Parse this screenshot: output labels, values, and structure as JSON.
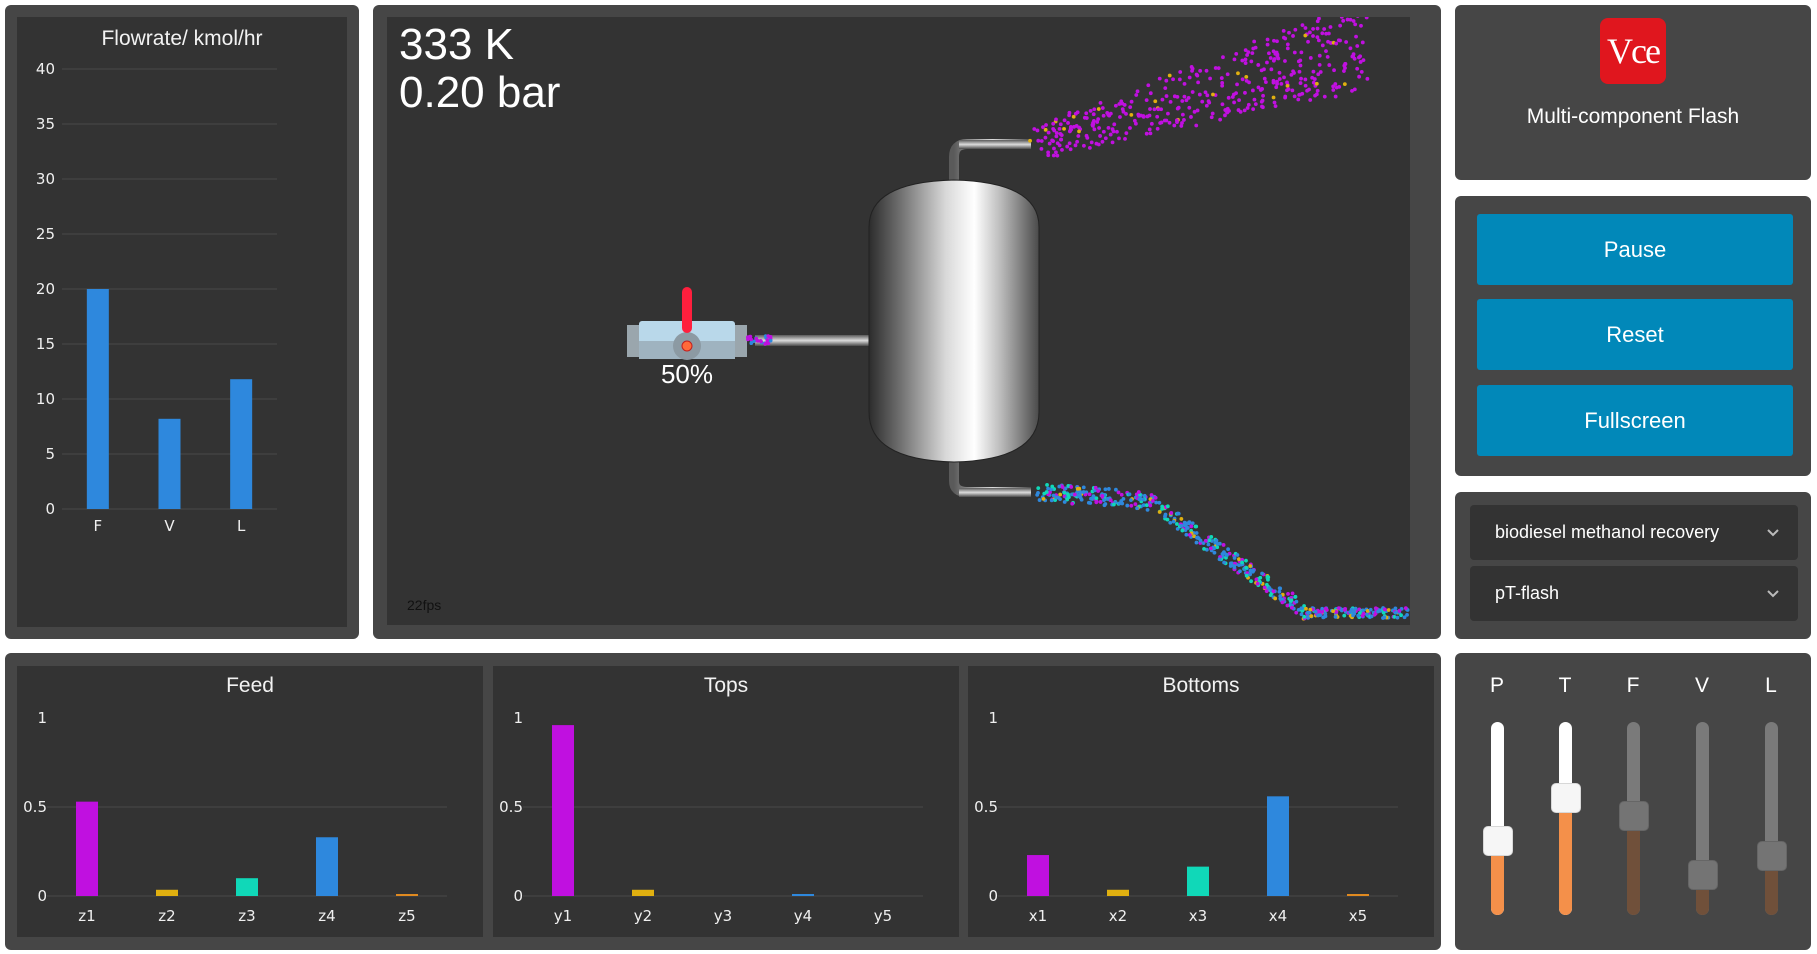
{
  "flowrate_chart": {
    "title": "Flowrate/ kmol/hr",
    "chart_data": {
      "type": "bar",
      "title": "Flowrate/ kmol/hr",
      "categories": [
        "F",
        "V",
        "L"
      ],
      "values": [
        20,
        8.2,
        11.8
      ],
      "ylim": [
        0,
        40
      ],
      "yticks": [
        "0",
        "5",
        "10",
        "15",
        "20",
        "25",
        "30",
        "35",
        "40"
      ],
      "color": "#2e88dd"
    }
  },
  "process": {
    "temperature": "333 K",
    "pressure": "0.20 bar",
    "valve_opening": "50%",
    "fps": "22fps"
  },
  "app": {
    "logo_text": "Vce",
    "title": "Multi-component Flash"
  },
  "controls": {
    "pause_label": "Pause",
    "reset_label": "Reset",
    "fullscreen_label": "Fullscreen"
  },
  "selects": {
    "system": "biodiesel methanol recovery",
    "flash_type": "pT-flash"
  },
  "composition_colors": [
    "#c010e0",
    "#e0b010",
    "#10d8b8",
    "#2e88dd",
    "#e08a20"
  ],
  "composition_charts": [
    {
      "title": "Feed",
      "chart_data": {
        "type": "bar",
        "title": "Feed",
        "categories": [
          "z1",
          "z2",
          "z3",
          "z4",
          "z5"
        ],
        "values": [
          0.53,
          0.035,
          0.1,
          0.33,
          0.01
        ],
        "ylim": [
          0,
          1
        ],
        "yticks": [
          "0",
          "0.5",
          "1"
        ]
      }
    },
    {
      "title": "Tops",
      "chart_data": {
        "type": "bar",
        "title": "Tops",
        "categories": [
          "y1",
          "y2",
          "y3",
          "y4",
          "y5"
        ],
        "values": [
          0.96,
          0.035,
          0.0,
          0.008,
          0.0
        ],
        "ylim": [
          0,
          1
        ],
        "yticks": [
          "0",
          "0.5",
          "1"
        ]
      }
    },
    {
      "title": "Bottoms",
      "chart_data": {
        "type": "bar",
        "title": "Bottoms",
        "categories": [
          "x1",
          "x2",
          "x3",
          "x4",
          "x5"
        ],
        "values": [
          0.23,
          0.035,
          0.165,
          0.56,
          0.01
        ],
        "ylim": [
          0,
          1
        ],
        "yticks": [
          "0",
          "0.5",
          "1"
        ]
      }
    }
  ],
  "sliders": [
    {
      "label": "P",
      "value": 0.39,
      "enabled": true,
      "fill": "#f4904a"
    },
    {
      "label": "T",
      "value": 0.61,
      "enabled": true,
      "fill": "#f4904a"
    },
    {
      "label": "F",
      "value": 0.52,
      "enabled": false,
      "fill": "#70503a"
    },
    {
      "label": "V",
      "value": 0.21,
      "enabled": false,
      "fill": "#70503a"
    },
    {
      "label": "L",
      "value": 0.31,
      "enabled": false,
      "fill": "#70503a"
    }
  ]
}
